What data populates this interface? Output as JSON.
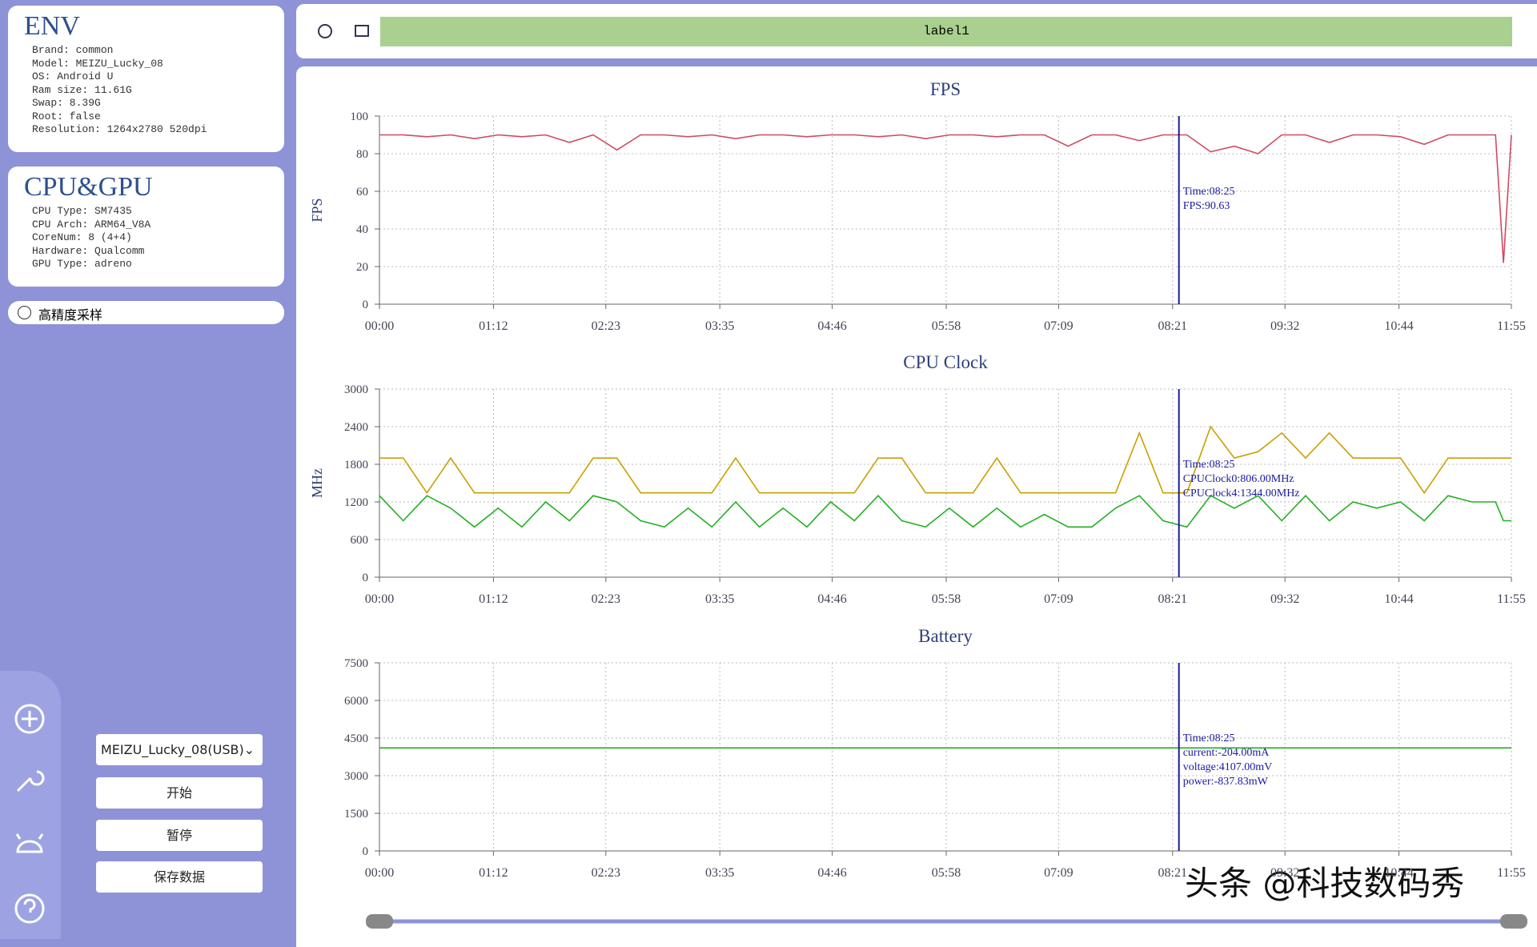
{
  "env": {
    "title": "ENV",
    "lines": [
      "Brand: common",
      "Model: MEIZU_Lucky_08",
      "OS: Android U",
      "Ram size: 11.61G",
      "Swap: 8.39G",
      "Root: false",
      "Resolution: 1264x2780 520dpi"
    ]
  },
  "cpu_gpu": {
    "title": "CPU&GPU",
    "lines": [
      "CPU Type: SM7435",
      "CPU Arch: ARM64_V8A",
      "CoreNum: 8 (4+4)",
      "Hardware: Qualcomm",
      "GPU Type: adreno"
    ]
  },
  "high_precision": "高精度采样",
  "toolbar": {
    "label": "label1"
  },
  "device_select": "MEIZU_Lucky_08(USB)",
  "buttons": [
    "开始",
    "暂停",
    "保存数据"
  ],
  "watermark": "头条 @科技数码秀",
  "chart_data": [
    {
      "type": "line",
      "title": "FPS",
      "ylabel": "FPS",
      "grid": true,
      "x": [
        0,
        15,
        30,
        45,
        60,
        75,
        90,
        105,
        120,
        135,
        150,
        165,
        180,
        195,
        210,
        225,
        240,
        255,
        270,
        285,
        300,
        315,
        330,
        345,
        360,
        375,
        390,
        405,
        420,
        435,
        450,
        465,
        480,
        495,
        510,
        525,
        540,
        555,
        570,
        585,
        600,
        615,
        630,
        645,
        660,
        675,
        690,
        705,
        710,
        715
      ],
      "series": [
        {
          "color": "#d04a62",
          "values": [
            90,
            90,
            89,
            90,
            88,
            90,
            89,
            90,
            86,
            90,
            82,
            90,
            90,
            89,
            90,
            88,
            90,
            90,
            89,
            90,
            90,
            89,
            90,
            88,
            90,
            90,
            89,
            90,
            90,
            84,
            90,
            90,
            87,
            90,
            90,
            81,
            84,
            80,
            90,
            90,
            86,
            90,
            90,
            89,
            85,
            90,
            90,
            90,
            22,
            90
          ]
        }
      ],
      "xlim": [
        0,
        715
      ],
      "xticks": [
        {
          "value": 0,
          "label": "00:00"
        },
        {
          "value": 72,
          "label": "01:12"
        },
        {
          "value": 143,
          "label": "02:23"
        },
        {
          "value": 215,
          "label": "03:35"
        },
        {
          "value": 286,
          "label": "04:46"
        },
        {
          "value": 358,
          "label": "05:58"
        },
        {
          "value": 429,
          "label": "07:09"
        },
        {
          "value": 501,
          "label": "08:21"
        },
        {
          "value": 572,
          "label": "09:32"
        },
        {
          "value": 644,
          "label": "10:44"
        },
        {
          "value": 715,
          "label": "11:55"
        }
      ],
      "ylim": [
        0,
        100
      ],
      "yticks": [
        0,
        20,
        40,
        60,
        80,
        100
      ],
      "cursor": {
        "x": 505,
        "color": "#1a1aa0",
        "lines": [
          "Time:08:25",
          "FPS:90.63"
        ]
      }
    },
    {
      "type": "line",
      "title": "CPU Clock",
      "ylabel": "MHz",
      "grid": true,
      "x": [
        0,
        15,
        30,
        45,
        60,
        75,
        90,
        105,
        120,
        135,
        150,
        165,
        180,
        195,
        210,
        225,
        240,
        255,
        270,
        285,
        300,
        315,
        330,
        345,
        360,
        375,
        390,
        405,
        420,
        435,
        450,
        465,
        480,
        495,
        510,
        525,
        540,
        555,
        570,
        585,
        600,
        615,
        630,
        645,
        660,
        675,
        690,
        705,
        710,
        715
      ],
      "series": [
        {
          "color": "#c8a000",
          "values": [
            1900,
            1900,
            1344,
            1900,
            1344,
            1344,
            1344,
            1344,
            1344,
            1900,
            1900,
            1344,
            1344,
            1344,
            1344,
            1900,
            1344,
            1344,
            1344,
            1344,
            1344,
            1900,
            1900,
            1344,
            1344,
            1344,
            1900,
            1344,
            1344,
            1344,
            1344,
            1344,
            2300,
            1344,
            1344,
            2400,
            1900,
            2000,
            2300,
            1900,
            2300,
            1900,
            1900,
            1900,
            1344,
            1900,
            1900,
            1900,
            1900,
            1900
          ]
        },
        {
          "color": "#22b022",
          "values": [
            1300,
            900,
            1300,
            1100,
            800,
            1100,
            800,
            1200,
            900,
            1300,
            1200,
            900,
            800,
            1100,
            800,
            1200,
            800,
            1100,
            800,
            1200,
            900,
            1300,
            900,
            800,
            1100,
            800,
            1100,
            800,
            1000,
            800,
            800,
            1100,
            1300,
            900,
            800,
            1300,
            1100,
            1300,
            900,
            1300,
            900,
            1200,
            1100,
            1200,
            900,
            1300,
            1200,
            1200,
            900,
            900
          ]
        }
      ],
      "xlim": [
        0,
        715
      ],
      "xticks": [
        {
          "value": 0,
          "label": "00:00"
        },
        {
          "value": 72,
          "label": "01:12"
        },
        {
          "value": 143,
          "label": "02:23"
        },
        {
          "value": 215,
          "label": "03:35"
        },
        {
          "value": 286,
          "label": "04:46"
        },
        {
          "value": 358,
          "label": "05:58"
        },
        {
          "value": 429,
          "label": "07:09"
        },
        {
          "value": 501,
          "label": "08:21"
        },
        {
          "value": 572,
          "label": "09:32"
        },
        {
          "value": 644,
          "label": "10:44"
        },
        {
          "value": 715,
          "label": "11:55"
        }
      ],
      "ylim": [
        0,
        3000
      ],
      "yticks": [
        0,
        600,
        1200,
        1800,
        2400,
        3000
      ],
      "cursor": {
        "x": 505,
        "color": "#1a1aa0",
        "lines": [
          "Time:08:25",
          "CPUClock0:806.00MHz",
          "CPUClock4:1344.00MHz"
        ]
      }
    },
    {
      "type": "line",
      "title": "Battery",
      "grid": true,
      "x": [
        0,
        715
      ],
      "series": [
        {
          "color": "#22aa22",
          "values": [
            4107,
            4107
          ]
        }
      ],
      "xlim": [
        0,
        715
      ],
      "xticks": [
        {
          "value": 0,
          "label": "00:00"
        },
        {
          "value": 72,
          "label": "01:12"
        },
        {
          "value": 143,
          "label": "02:23"
        },
        {
          "value": 215,
          "label": "03:35"
        },
        {
          "value": 286,
          "label": "04:46"
        },
        {
          "value": 358,
          "label": "05:58"
        },
        {
          "value": 429,
          "label": "07:09"
        },
        {
          "value": 501,
          "label": "08:21"
        },
        {
          "value": 572,
          "label": "09:32"
        },
        {
          "value": 644,
          "label": "10:44"
        },
        {
          "value": 715,
          "label": "11:55"
        }
      ],
      "ylim": [
        0,
        7500
      ],
      "yticks": [
        0,
        1500,
        3000,
        4500,
        6000,
        7500
      ],
      "cursor": {
        "x": 505,
        "color": "#1a1aa0",
        "lines": [
          "Time:08:25",
          "current:-204.00mA",
          "voltage:4107.00mV",
          "power:-837.83mW"
        ]
      }
    }
  ]
}
